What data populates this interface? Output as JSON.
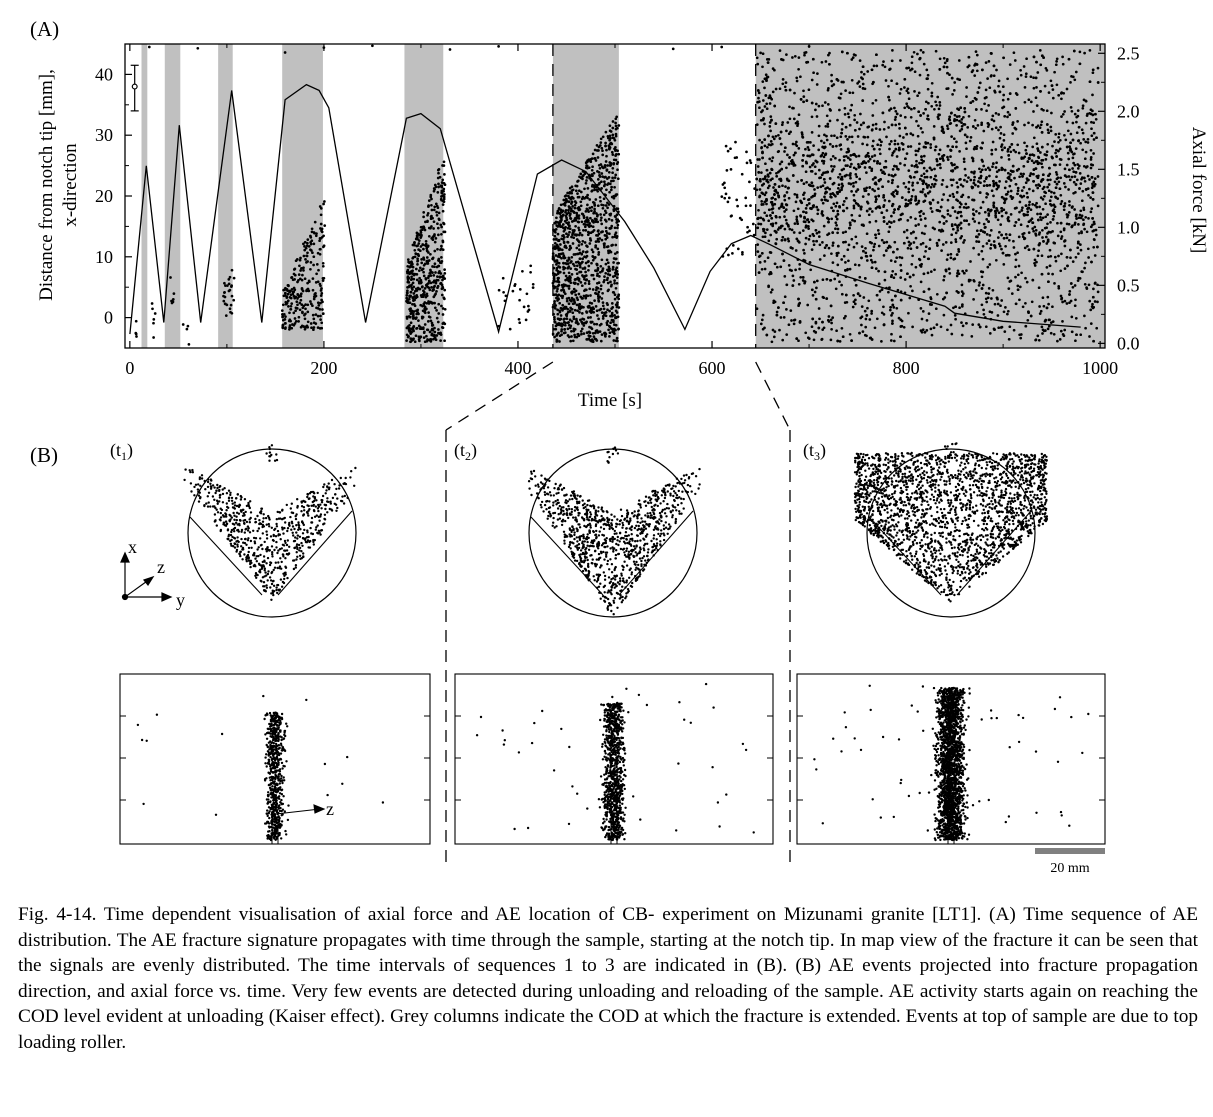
{
  "figure": {
    "panel_a_label": "(A)",
    "panel_b_label": "(B)",
    "seq_labels": [
      "t",
      "t",
      "t"
    ],
    "seq_subscripts": [
      "1",
      "2",
      "3"
    ],
    "axis_letters": {
      "x": "x",
      "y": "y",
      "z": "z"
    },
    "side_axis_letter": "z",
    "scale_bar_label": "20 mm",
    "sample_radius_mm": 24,
    "scale_bar_length_mm": 20
  },
  "chart_data": {
    "type": "scatter",
    "xlabel": "Time [s]",
    "ylabel_lines": [
      "Distance from notch tip [mm],",
      "x-direction"
    ],
    "y2label": "Axial force [kN]",
    "xlim": [
      -5,
      1005
    ],
    "ylim": [
      -5,
      45
    ],
    "y2lim": [
      -0.04,
      2.58
    ],
    "xticks": [
      0,
      200,
      400,
      600,
      800,
      1000
    ],
    "yticks": [
      0,
      10,
      20,
      30,
      40
    ],
    "y2ticks": [
      "0.0",
      "0.5",
      "1.0",
      "1.5",
      "2.0",
      "2.5"
    ],
    "grey_columns_s": [
      [
        12,
        18
      ],
      [
        36,
        52
      ],
      [
        91,
        106
      ],
      [
        157,
        199
      ],
      [
        283,
        323
      ],
      [
        436,
        504
      ],
      [
        645,
        1005
      ]
    ],
    "window_markers_s": [
      436,
      645
    ],
    "error_bar": {
      "x": 5,
      "center": 38,
      "low": 34,
      "high": 41.5
    },
    "series": [
      {
        "name": "Axial force",
        "axis": "right",
        "x": [
          0,
          17,
          35,
          51,
          73,
          105,
          136,
          160,
          182,
          195,
          205,
          243,
          285,
          300,
          320,
          380,
          420,
          445,
          470,
          510,
          540,
          572,
          598,
          620,
          640,
          660,
          700,
          760,
          840,
          850,
          900,
          980
        ],
        "y": [
          0.08,
          1.53,
          0.18,
          1.88,
          0.18,
          2.18,
          0.18,
          2.1,
          2.23,
          2.18,
          2.03,
          0.18,
          1.94,
          1.98,
          1.85,
          0.1,
          1.46,
          1.58,
          1.48,
          1.05,
          0.65,
          0.12,
          0.62,
          0.86,
          0.93,
          0.85,
          0.68,
          0.52,
          0.32,
          0.26,
          0.19,
          0.14
        ]
      },
      {
        "name": "AE events",
        "axis": "left",
        "clusters_s": [
          [
            8,
            30
          ],
          [
            40,
            60
          ],
          [
            92,
            108
          ],
          [
            155,
            200
          ],
          [
            283,
            325
          ],
          [
            380,
            420
          ],
          [
            435,
            505
          ],
          [
            600,
            645
          ],
          [
            645,
            1000
          ]
        ]
      }
    ]
  },
  "caption": "Fig. 4-14. Time dependent visualisation of axial force and AE location of CB- experiment on Mizunami granite [LT1]. (A) Time sequence of AE distribution. The AE fracture signature propagates with time through the sample, starting at the notch tip. In map view of the fracture it can be seen that the signals are evenly distributed. The time intervals of sequences 1 to 3 are indicated in (B). (B) AE events projected into fracture propagation direction, and axial force vs. time. Very few events are detected during unloading and reloading of the sample. AE activity starts again on reaching the COD level evident at unloading (Kaiser effect). Grey columns indicate the COD at which the fracture is extended. Events at top of sample are due to top loading roller."
}
